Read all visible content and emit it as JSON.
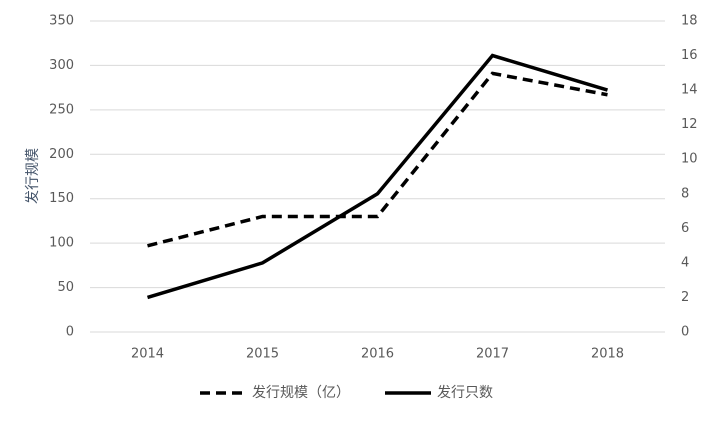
{
  "chart_data": {
    "type": "line",
    "y_label": "发行规模",
    "categories": [
      "2014",
      "2015",
      "2016",
      "2017",
      "2018"
    ],
    "series": [
      {
        "name": "发行规模（亿）",
        "color": "#000000",
        "dash": true,
        "values": [
          97,
          130,
          130,
          291,
          267
        ]
      },
      {
        "name": "发行只数",
        "color": "#000000",
        "dash": false,
        "axis": "y2",
        "values": [
          2,
          4,
          8,
          16,
          14
        ]
      }
    ],
    "ylim": [
      0,
      350
    ],
    "yticks": [
      0,
      50,
      100,
      150,
      200,
      250,
      300,
      350
    ],
    "y2lim": [
      0,
      18
    ],
    "y2ticks": [
      0,
      2,
      4,
      6,
      8,
      10,
      12,
      14,
      16,
      18
    ],
    "grid": true,
    "legend": "bottom"
  }
}
